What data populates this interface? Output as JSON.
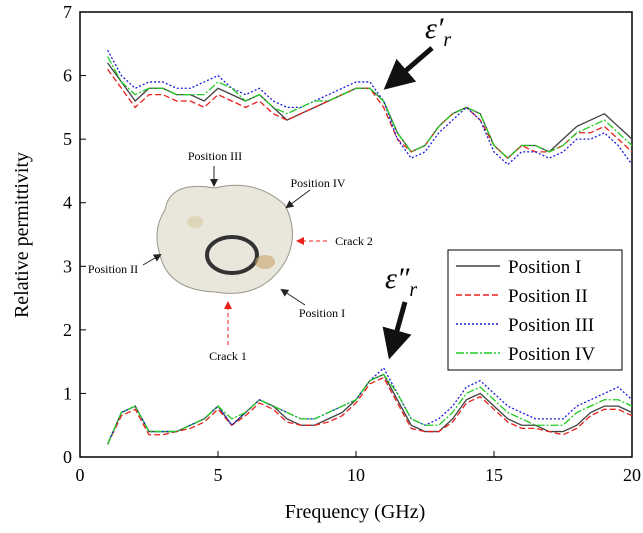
{
  "chart_data": {
    "type": "line",
    "x_label": "Frequency (GHz)",
    "y_label": "Relative permittivity",
    "xlim": [
      0,
      20
    ],
    "ylim": [
      0,
      7
    ],
    "xticks": [
      0,
      5,
      10,
      15,
      20
    ],
    "yticks": [
      0,
      1,
      2,
      3,
      4,
      5,
      6,
      7
    ],
    "legend_position": "right",
    "annotations": [
      {
        "symbol": "ε′",
        "sub": "r"
      },
      {
        "symbol": "ε″",
        "sub": "r"
      }
    ],
    "inset_labels": [
      "Position III",
      "Position IV",
      "Position II",
      "Position I",
      "Crack 1",
      "Crack 2"
    ],
    "x": [
      1,
      1.5,
      2,
      2.5,
      3,
      3.5,
      4,
      4.5,
      5,
      5.5,
      6,
      6.5,
      7,
      7.5,
      8,
      8.5,
      9,
      9.5,
      10,
      10.5,
      11,
      11.5,
      12,
      12.5,
      13,
      13.5,
      14,
      14.5,
      15,
      15.5,
      16,
      16.5,
      17,
      17.5,
      18,
      18.5,
      19,
      19.5,
      20
    ],
    "series": [
      {
        "name": "Position I",
        "color": "#404040",
        "dash": "none",
        "values": [
          6.2,
          5.9,
          5.6,
          5.8,
          5.8,
          5.7,
          5.7,
          5.6,
          5.8,
          5.7,
          5.6,
          5.7,
          5.5,
          5.3,
          5.4,
          5.5,
          5.6,
          5.7,
          5.8,
          5.8,
          5.6,
          5.1,
          4.8,
          4.9,
          5.2,
          5.4,
          5.5,
          5.4,
          4.9,
          4.7,
          4.9,
          4.9,
          4.8,
          5.0,
          5.2,
          5.3,
          5.4,
          5.2,
          5.0
        ],
        "imag_values": [
          0.2,
          0.7,
          0.8,
          0.4,
          0.4,
          0.4,
          0.5,
          0.6,
          0.8,
          0.5,
          0.7,
          0.9,
          0.8,
          0.6,
          0.5,
          0.5,
          0.6,
          0.7,
          0.9,
          1.2,
          1.3,
          0.9,
          0.5,
          0.4,
          0.4,
          0.6,
          0.9,
          1.0,
          0.8,
          0.6,
          0.5,
          0.5,
          0.4,
          0.4,
          0.5,
          0.7,
          0.8,
          0.8,
          0.7
        ]
      },
      {
        "name": "Position II",
        "color": "#e8211d",
        "dash": "6,3",
        "values": [
          6.1,
          5.8,
          5.5,
          5.7,
          5.7,
          5.6,
          5.6,
          5.5,
          5.7,
          5.6,
          5.5,
          5.6,
          5.4,
          5.3,
          5.4,
          5.5,
          5.6,
          5.7,
          5.8,
          5.8,
          5.5,
          5.0,
          4.8,
          4.9,
          5.2,
          5.4,
          5.5,
          5.3,
          4.9,
          4.7,
          4.9,
          4.8,
          4.8,
          4.9,
          5.1,
          5.1,
          5.2,
          5.0,
          4.8
        ],
        "imag_values": [
          0.2,
          0.65,
          0.75,
          0.35,
          0.35,
          0.4,
          0.45,
          0.55,
          0.75,
          0.5,
          0.65,
          0.85,
          0.75,
          0.55,
          0.5,
          0.5,
          0.55,
          0.65,
          0.85,
          1.15,
          1.25,
          0.85,
          0.45,
          0.4,
          0.4,
          0.55,
          0.85,
          0.95,
          0.75,
          0.55,
          0.45,
          0.45,
          0.4,
          0.35,
          0.45,
          0.65,
          0.75,
          0.75,
          0.65
        ]
      },
      {
        "name": "Position III",
        "color": "#1c1cd8",
        "dash": "2,2",
        "values": [
          6.4,
          6.0,
          5.8,
          5.9,
          5.9,
          5.8,
          5.8,
          5.9,
          6.0,
          5.8,
          5.7,
          5.8,
          5.6,
          5.5,
          5.5,
          5.6,
          5.7,
          5.8,
          5.9,
          5.9,
          5.6,
          5.0,
          4.7,
          4.8,
          5.1,
          5.3,
          5.5,
          5.3,
          4.8,
          4.6,
          4.8,
          4.8,
          4.7,
          4.8,
          5.0,
          5.0,
          5.1,
          4.9,
          4.6
        ],
        "imag_values": [
          0.2,
          0.7,
          0.8,
          0.4,
          0.4,
          0.4,
          0.5,
          0.6,
          0.8,
          0.5,
          0.7,
          0.9,
          0.8,
          0.7,
          0.6,
          0.6,
          0.7,
          0.8,
          0.9,
          1.2,
          1.4,
          1.0,
          0.6,
          0.5,
          0.6,
          0.8,
          1.1,
          1.2,
          1.0,
          0.8,
          0.7,
          0.6,
          0.6,
          0.6,
          0.8,
          0.9,
          1.0,
          1.1,
          0.9
        ]
      },
      {
        "name": "Position IV",
        "color": "#22cc22",
        "dash": "8,2,2,2",
        "values": [
          6.3,
          5.9,
          5.7,
          5.8,
          5.8,
          5.7,
          5.7,
          5.7,
          5.9,
          5.8,
          5.6,
          5.7,
          5.5,
          5.4,
          5.5,
          5.6,
          5.6,
          5.7,
          5.8,
          5.8,
          5.6,
          5.1,
          4.8,
          4.9,
          5.2,
          5.4,
          5.5,
          5.4,
          4.9,
          4.7,
          4.9,
          4.9,
          4.8,
          4.9,
          5.1,
          5.2,
          5.3,
          5.1,
          4.9
        ],
        "imag_values": [
          0.2,
          0.7,
          0.8,
          0.4,
          0.4,
          0.4,
          0.5,
          0.6,
          0.8,
          0.6,
          0.7,
          0.9,
          0.8,
          0.7,
          0.6,
          0.6,
          0.7,
          0.8,
          0.9,
          1.2,
          1.3,
          1.0,
          0.6,
          0.5,
          0.5,
          0.7,
          1.0,
          1.1,
          0.9,
          0.7,
          0.6,
          0.5,
          0.5,
          0.5,
          0.7,
          0.8,
          0.9,
          0.9,
          0.8
        ]
      }
    ]
  }
}
